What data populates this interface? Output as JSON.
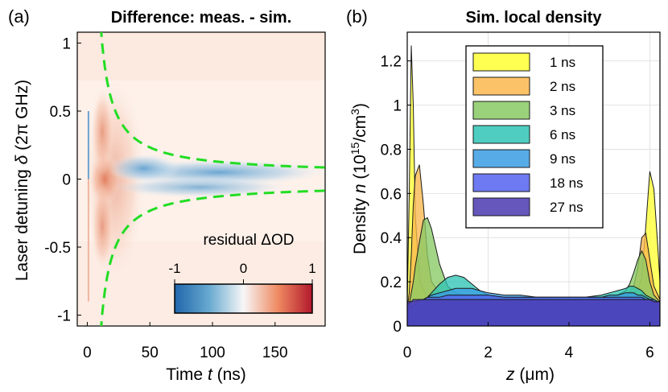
{
  "chart_data": [
    {
      "panel": "(a)",
      "type": "heatmap",
      "title": "Difference: meas. - sim.",
      "xlabel_prefix": "Time ",
      "xlabel_var": "t",
      "xlabel_suffix": " (ns)",
      "ylabel_prefix": "Laser detuning ",
      "ylabel_var": "δ",
      "ylabel_suffix": " (2π GHz)",
      "xlim": [
        -8,
        190
      ],
      "ylim": [
        -1.08,
        1.08
      ],
      "xticks": [
        0,
        50,
        100,
        150
      ],
      "xtick_labels": [
        "0",
        "50",
        "100",
        "150"
      ],
      "yticks": [
        1,
        0.5,
        0,
        -0.5,
        -1
      ],
      "ytick_labels": [
        "1",
        "0.5",
        "0",
        "-0.5",
        "-1"
      ],
      "colorbar": {
        "label": "residual ΔOD",
        "range": [
          -1,
          1
        ],
        "ticks": [
          -1,
          0,
          1
        ],
        "tick_labels": [
          "-1",
          "0",
          "1"
        ],
        "colors": [
          "#2166ac",
          "#67a9cf",
          "#f7f7f7",
          "#ef8a62",
          "#b2182b"
        ]
      },
      "curve": {
        "color": "#22dd22",
        "style": "dashed",
        "description": "δ = ±a/(t - t0) + offset",
        "t0": 2,
        "a": 9.5,
        "offset": 0.035
      }
    },
    {
      "panel": "(b)",
      "type": "area",
      "title": "Sim. local density",
      "xlabel_var": "z",
      "xlabel_suffix": " (μm)",
      "ylabel_prefix": "Density ",
      "ylabel_var": "n",
      "ylabel_unit_open": " (10",
      "ylabel_unit_exp1": "15",
      "ylabel_unit_mid": "/cm",
      "ylabel_unit_exp2": "3",
      "ylabel_unit_close": ")",
      "xlim": [
        0,
        6.25
      ],
      "ylim": [
        0,
        1.33
      ],
      "xticks": [
        0,
        2,
        4,
        6
      ],
      "xtick_labels": [
        "0",
        "2",
        "4",
        "6"
      ],
      "yticks": [
        0,
        0.2,
        0.4,
        0.6,
        0.8,
        1,
        1.2
      ],
      "ytick_labels": [
        "0",
        "0.2",
        "0.4",
        "0.6",
        "0.8",
        "1",
        "1.2"
      ],
      "x": [
        0,
        0.05,
        0.1,
        0.15,
        0.2,
        0.3,
        0.4,
        0.5,
        0.6,
        0.8,
        1.0,
        1.2,
        1.4,
        1.6,
        1.8,
        2.0,
        2.4,
        2.8,
        3.2,
        3.6,
        4.0,
        4.4,
        4.8,
        5.0,
        5.2,
        5.4,
        5.5,
        5.6,
        5.7,
        5.8,
        5.9,
        6.0,
        6.1,
        6.2,
        6.25
      ],
      "series": [
        {
          "name": "1 ns",
          "color": "#ffff33",
          "values": [
            0.1,
            0.6,
            1.27,
            1.0,
            0.5,
            0.22,
            0.16,
            0.14,
            0.14,
            0.13,
            0.13,
            0.12,
            0.12,
            0.12,
            0.12,
            0.12,
            0.12,
            0.12,
            0.12,
            0.12,
            0.12,
            0.12,
            0.12,
            0.12,
            0.12,
            0.13,
            0.13,
            0.14,
            0.16,
            0.22,
            0.45,
            0.7,
            0.62,
            0.35,
            0.2
          ]
        },
        {
          "name": "2 ns",
          "color": "#fbb74c",
          "values": [
            0.08,
            0.15,
            0.32,
            0.55,
            0.68,
            0.73,
            0.55,
            0.32,
            0.2,
            0.15,
            0.14,
            0.14,
            0.13,
            0.13,
            0.13,
            0.13,
            0.13,
            0.12,
            0.12,
            0.12,
            0.12,
            0.12,
            0.12,
            0.13,
            0.13,
            0.14,
            0.15,
            0.18,
            0.26,
            0.4,
            0.42,
            0.3,
            0.18,
            0.14,
            0.12
          ]
        },
        {
          "name": "3 ns",
          "color": "#88c964",
          "values": [
            0.07,
            0.1,
            0.15,
            0.2,
            0.27,
            0.38,
            0.48,
            0.49,
            0.44,
            0.28,
            0.18,
            0.15,
            0.14,
            0.14,
            0.14,
            0.13,
            0.13,
            0.13,
            0.13,
            0.12,
            0.12,
            0.12,
            0.13,
            0.13,
            0.14,
            0.16,
            0.19,
            0.24,
            0.3,
            0.34,
            0.3,
            0.2,
            0.14,
            0.12,
            0.11
          ]
        },
        {
          "name": "6 ns",
          "color": "#2fc4b5",
          "values": [
            0.06,
            0.07,
            0.08,
            0.09,
            0.1,
            0.11,
            0.12,
            0.13,
            0.15,
            0.19,
            0.22,
            0.23,
            0.22,
            0.19,
            0.16,
            0.14,
            0.13,
            0.13,
            0.13,
            0.13,
            0.13,
            0.13,
            0.14,
            0.15,
            0.16,
            0.17,
            0.18,
            0.18,
            0.17,
            0.16,
            0.14,
            0.13,
            0.12,
            0.11,
            0.1
          ]
        },
        {
          "name": "9 ns",
          "color": "#3a9ee4",
          "values": [
            0.08,
            0.08,
            0.09,
            0.09,
            0.1,
            0.11,
            0.12,
            0.13,
            0.14,
            0.15,
            0.16,
            0.17,
            0.17,
            0.17,
            0.16,
            0.15,
            0.14,
            0.14,
            0.13,
            0.13,
            0.13,
            0.13,
            0.13,
            0.14,
            0.14,
            0.15,
            0.15,
            0.15,
            0.14,
            0.14,
            0.13,
            0.12,
            0.11,
            0.1,
            0.1
          ]
        },
        {
          "name": "18 ns",
          "color": "#5563ee",
          "values": [
            0.1,
            0.1,
            0.11,
            0.11,
            0.11,
            0.12,
            0.12,
            0.13,
            0.13,
            0.13,
            0.14,
            0.14,
            0.14,
            0.14,
            0.14,
            0.14,
            0.13,
            0.13,
            0.13,
            0.13,
            0.13,
            0.13,
            0.13,
            0.13,
            0.13,
            0.13,
            0.13,
            0.13,
            0.13,
            0.13,
            0.12,
            0.12,
            0.12,
            0.11,
            0.11
          ]
        },
        {
          "name": "27 ns",
          "color": "#4b3ab1",
          "values": [
            0.11,
            0.11,
            0.11,
            0.12,
            0.12,
            0.12,
            0.12,
            0.12,
            0.12,
            0.12,
            0.12,
            0.12,
            0.12,
            0.12,
            0.12,
            0.12,
            0.12,
            0.12,
            0.12,
            0.12,
            0.12,
            0.12,
            0.12,
            0.12,
            0.12,
            0.12,
            0.12,
            0.12,
            0.12,
            0.12,
            0.12,
            0.12,
            0.11,
            0.11,
            0.11
          ]
        }
      ]
    }
  ]
}
